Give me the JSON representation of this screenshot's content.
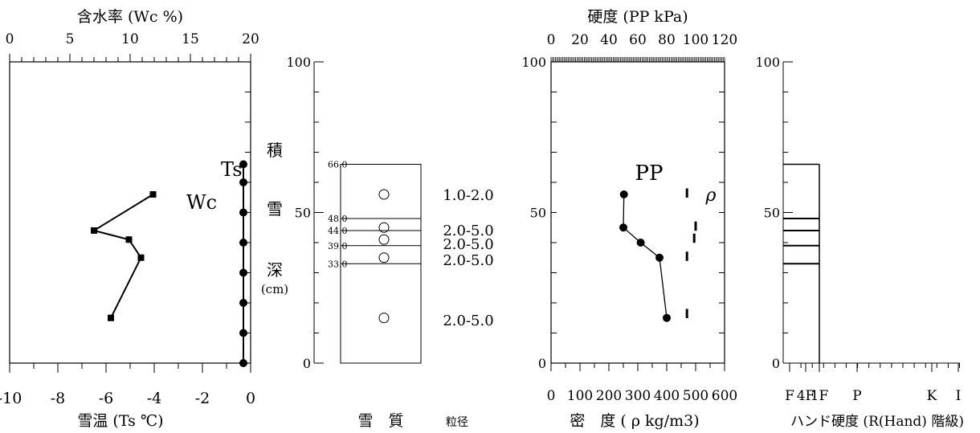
{
  "labels": {
    "wc_axis_title": "含水率 (Wc  %)",
    "ts_axis_title": "雪温 (Ts  ℃)",
    "depth_chars": [
      "積",
      "雪",
      "深"
    ],
    "depth_unit": "(cm)",
    "quality_title": "雪　質",
    "grain_title": "粒径",
    "pp_axis_title": "硬度 (PP  kPa)",
    "density_axis_title": "密　度 ( ρ   kg/m3)",
    "hand_axis_title": "ハンド硬度 (R(Hand) 階級)",
    "series_wc": "Wc",
    "series_ts": "Ts",
    "series_pp": "PP",
    "series_rho": "ρ"
  },
  "chart_data": [
    {
      "type": "line",
      "panel": "temperature_and_water_content",
      "ylabel": "積雪深 (cm)",
      "ylim": [
        0,
        100
      ],
      "axes": {
        "bottom": {
          "label": "雪温 (Ts  ℃)",
          "range": [
            -10,
            0
          ],
          "ticks": [
            "-10",
            "-8",
            "-6",
            "-4",
            "-2",
            "0"
          ]
        },
        "top": {
          "label": "含水率 (Wc  %)",
          "range": [
            0,
            20
          ],
          "ticks": [
            "0",
            "5",
            "10",
            "15",
            "20"
          ]
        }
      },
      "series": [
        {
          "name": "Ts",
          "axis": "bottom",
          "points": [
            [
              -0.3,
              66
            ],
            [
              -0.3,
              60
            ],
            [
              -0.3,
              50
            ],
            [
              -0.3,
              40
            ],
            [
              -0.3,
              30
            ],
            [
              -0.3,
              20
            ],
            [
              -0.3,
              10
            ],
            [
              -0.3,
              0
            ]
          ]
        },
        {
          "name": "Wc",
          "axis": "top",
          "points": [
            [
              11.9,
              56
            ],
            [
              7.0,
              44
            ],
            [
              9.9,
              41
            ],
            [
              10.9,
              35
            ],
            [
              8.4,
              15
            ]
          ]
        }
      ]
    },
    {
      "type": "table",
      "panel": "snow_quality",
      "ylim": [
        0,
        100
      ],
      "snow_depth": 66.0,
      "layer_boundaries": [
        "66.0",
        "48.0",
        "44.0",
        "39.0",
        "33.0"
      ],
      "layers": [
        {
          "top": 66,
          "bottom": 48,
          "symbol_at": 56,
          "grain": "1.0-2.0"
        },
        {
          "top": 48,
          "bottom": 44,
          "symbol_at": 45,
          "grain": "2.0-5.0"
        },
        {
          "top": 44,
          "bottom": 39,
          "symbol_at": 41,
          "grain": "2.0-5.0"
        },
        {
          "top": 39,
          "bottom": 33,
          "symbol_at": 35,
          "grain": "2.0-5.0"
        },
        {
          "top": 33,
          "bottom": 0,
          "symbol_at": 15,
          "grain": "2.0-5.0"
        }
      ],
      "title": "雪　質",
      "ylabel": ""
    },
    {
      "type": "line",
      "panel": "hardness_and_density",
      "ylim": [
        0,
        100
      ],
      "axes": {
        "top": {
          "label": "硬度 (PP  kPa)",
          "range": [
            0,
            120
          ],
          "ticks": [
            "0",
            "20",
            "40",
            "60",
            "80",
            "100",
            "120"
          ]
        },
        "bottom": {
          "label": "密　度 ( ρ   kg/m3)",
          "range": [
            0,
            600
          ],
          "ticks": [
            "0",
            "100",
            "200",
            "300",
            "400",
            "500",
            "600"
          ]
        }
      },
      "series": [
        {
          "name": "PP",
          "axis": "bottom",
          "points": [
            [
              252,
              56
            ],
            [
              250,
              45
            ],
            [
              310,
              40
            ],
            [
              375,
              35
            ],
            [
              400,
              15
            ]
          ]
        },
        {
          "name": "ρ",
          "axis": "bottom",
          "style": "bar",
          "segments": [
            [
              470,
              58,
              56
            ],
            [
              500,
              47,
              45
            ],
            [
              495,
              43,
              41
            ],
            [
              470,
              37,
              35
            ],
            [
              470,
              18,
              16
            ]
          ]
        }
      ]
    },
    {
      "type": "bar",
      "panel": "hand_hardness",
      "ylim": [
        0,
        100
      ],
      "xlabel": "ハンド硬度 (R(Hand) 階級)",
      "categories": [
        "F",
        "4F",
        "1F",
        "P",
        "K",
        "I"
      ],
      "layers": [
        {
          "top": 66,
          "bottom": 48,
          "grade": "1F"
        },
        {
          "top": 48,
          "bottom": 44,
          "grade": "1F"
        },
        {
          "top": 44,
          "bottom": 39,
          "grade": "1F"
        },
        {
          "top": 39,
          "bottom": 33,
          "grade": "1F"
        },
        {
          "top": 33,
          "bottom": 0,
          "grade": "1F"
        }
      ]
    }
  ]
}
